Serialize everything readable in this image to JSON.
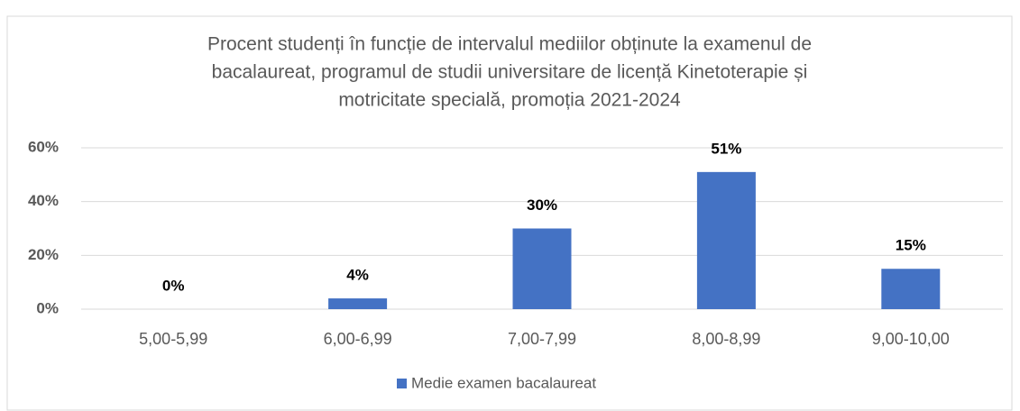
{
  "chart_data": {
    "type": "bar",
    "title": [
      "Procent studenți în funcție de intervalul mediilor obținute la examenul de",
      "bacalaureat, programul de studii universitare de licență Kinetoterapie și",
      "motricitate specială, promoția 2021-2024"
    ],
    "categories": [
      "5,00-5,99",
      "6,00-6,99",
      "7,00-7,99",
      "8,00-8,99",
      "9,00-10,00"
    ],
    "series": [
      {
        "name": "Medie examen bacalaureat",
        "color": "#4472c4",
        "values": [
          0,
          4,
          30,
          51,
          15
        ],
        "value_labels": [
          "0%",
          "4%",
          "30%",
          "51%",
          "15%"
        ]
      }
    ],
    "ylim": [
      0,
      60
    ],
    "yticks": [
      {
        "value": 0,
        "label": "0%"
      },
      {
        "value": 20,
        "label": "20%"
      },
      {
        "value": 40,
        "label": "40%"
      },
      {
        "value": 60,
        "label": "60%"
      }
    ],
    "grid": true,
    "legend": "bottom"
  }
}
